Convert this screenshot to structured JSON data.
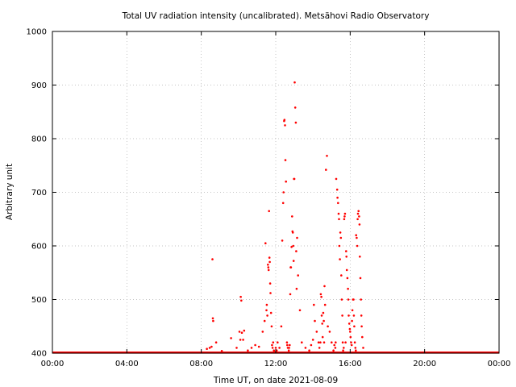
{
  "chart_data": {
    "type": "scatter",
    "title": "Total UV radiation intensity (uncalibrated). Metsähovi Radio Observatory",
    "xlabel": "Time UT, on date 2021-08-09",
    "ylabel": "Arbitrary unit",
    "xlim": [
      0,
      24
    ],
    "ylim": [
      400,
      1000
    ],
    "x_ticks": [
      0,
      4,
      8,
      12,
      16,
      20,
      24
    ],
    "x_tick_labels": [
      "00:00",
      "04:00",
      "08:00",
      "12:00",
      "16:00",
      "20:00",
      "00:00"
    ],
    "y_ticks": [
      400,
      500,
      600,
      700,
      800,
      900,
      1000
    ],
    "y_tick_labels": [
      "400",
      "500",
      "600",
      "700",
      "800",
      "900",
      "1000"
    ],
    "grid": true,
    "point_color": "#ff0000",
    "baseline_value": 401,
    "baseline_x_range": [
      0,
      24
    ],
    "series": [
      {
        "x": [
          8.3,
          8.45,
          8.55,
          8.6,
          8.62,
          8.64,
          8.8,
          9.1,
          9.6,
          9.9,
          10.05,
          10.1,
          10.12,
          10.15,
          10.18,
          10.25,
          10.3,
          10.5,
          10.7,
          10.9,
          11.1,
          11.3,
          11.4,
          11.45,
          11.5,
          11.52,
          11.55,
          11.58,
          11.6,
          11.62,
          11.64,
          11.66,
          11.68,
          11.7,
          11.72,
          11.75,
          11.78,
          11.8,
          11.83,
          11.86,
          11.9,
          11.95,
          12.0,
          12.05,
          12.1,
          12.2,
          12.3,
          12.35,
          12.4,
          12.42,
          12.45,
          12.47,
          12.5,
          12.52,
          12.55,
          12.6,
          12.62,
          12.65,
          12.7,
          12.72,
          12.75,
          12.78,
          12.8,
          12.82,
          12.85,
          12.88,
          12.9,
          12.92,
          12.94,
          12.96,
          12.98,
          13.0,
          13.02,
          13.05,
          13.08,
          13.1,
          13.12,
          13.15,
          13.2,
          13.3,
          13.4,
          13.6,
          13.8,
          13.9,
          14.0,
          14.05,
          14.1,
          14.2,
          14.3,
          14.35,
          14.4,
          14.42,
          14.45,
          14.47,
          14.5,
          14.52,
          14.55,
          14.58,
          14.6,
          14.62,
          14.65,
          14.7,
          14.75,
          14.8,
          14.9,
          15.0,
          15.1,
          15.15,
          15.2,
          15.22,
          15.25,
          15.3,
          15.32,
          15.35,
          15.38,
          15.4,
          15.42,
          15.45,
          15.47,
          15.5,
          15.52,
          15.55,
          15.58,
          15.6,
          15.62,
          15.65,
          15.68,
          15.7,
          15.72,
          15.75,
          15.78,
          15.8,
          15.82,
          15.85,
          15.88,
          15.9,
          15.92,
          15.95,
          15.98,
          16.0,
          16.02,
          16.05,
          16.08,
          16.1,
          16.12,
          16.15,
          16.18,
          16.2,
          16.22,
          16.25,
          16.28,
          16.3,
          16.32,
          16.35,
          16.38,
          16.4,
          16.42,
          16.45,
          16.48,
          16.5,
          16.52,
          16.55,
          16.58,
          16.6,
          16.62,
          16.65,
          16.7
        ],
        "y": [
          408,
          410,
          412,
          575,
          465,
          460,
          420,
          404,
          428,
          410,
          440,
          425,
          505,
          498,
          438,
          425,
          442,
          405,
          410,
          415,
          412,
          440,
          460,
          605,
          480,
          490,
          470,
          565,
          560,
          555,
          665,
          578,
          570,
          530,
          512,
          475,
          450,
          415,
          410,
          420,
          405,
          402,
          410,
          405,
          420,
          410,
          450,
          610,
          680,
          700,
          833,
          835,
          825,
          760,
          720,
          420,
          415,
          410,
          405,
          410,
          415,
          510,
          560,
          560,
          598,
          655,
          627,
          625,
          600,
          572,
          725,
          725,
          905,
          858,
          830,
          590,
          520,
          615,
          545,
          480,
          420,
          410,
          405,
          415,
          425,
          490,
          460,
          440,
          420,
          410,
          420,
          510,
          505,
          470,
          455,
          430,
          475,
          460,
          420,
          525,
          490,
          742,
          768,
          450,
          440,
          420,
          405,
          415,
          410,
          420,
          725,
          705,
          690,
          680,
          660,
          650,
          600,
          575,
          625,
          615,
          545,
          500,
          470,
          420,
          405,
          410,
          650,
          655,
          660,
          420,
          590,
          580,
          555,
          540,
          520,
          500,
          470,
          455,
          445,
          440,
          430,
          420,
          415,
          460,
          480,
          500,
          500,
          470,
          450,
          420,
          410,
          405,
          620,
          615,
          600,
          650,
          660,
          665,
          655,
          640,
          580,
          540,
          500,
          470,
          450,
          430,
          410
        ]
      }
    ]
  }
}
